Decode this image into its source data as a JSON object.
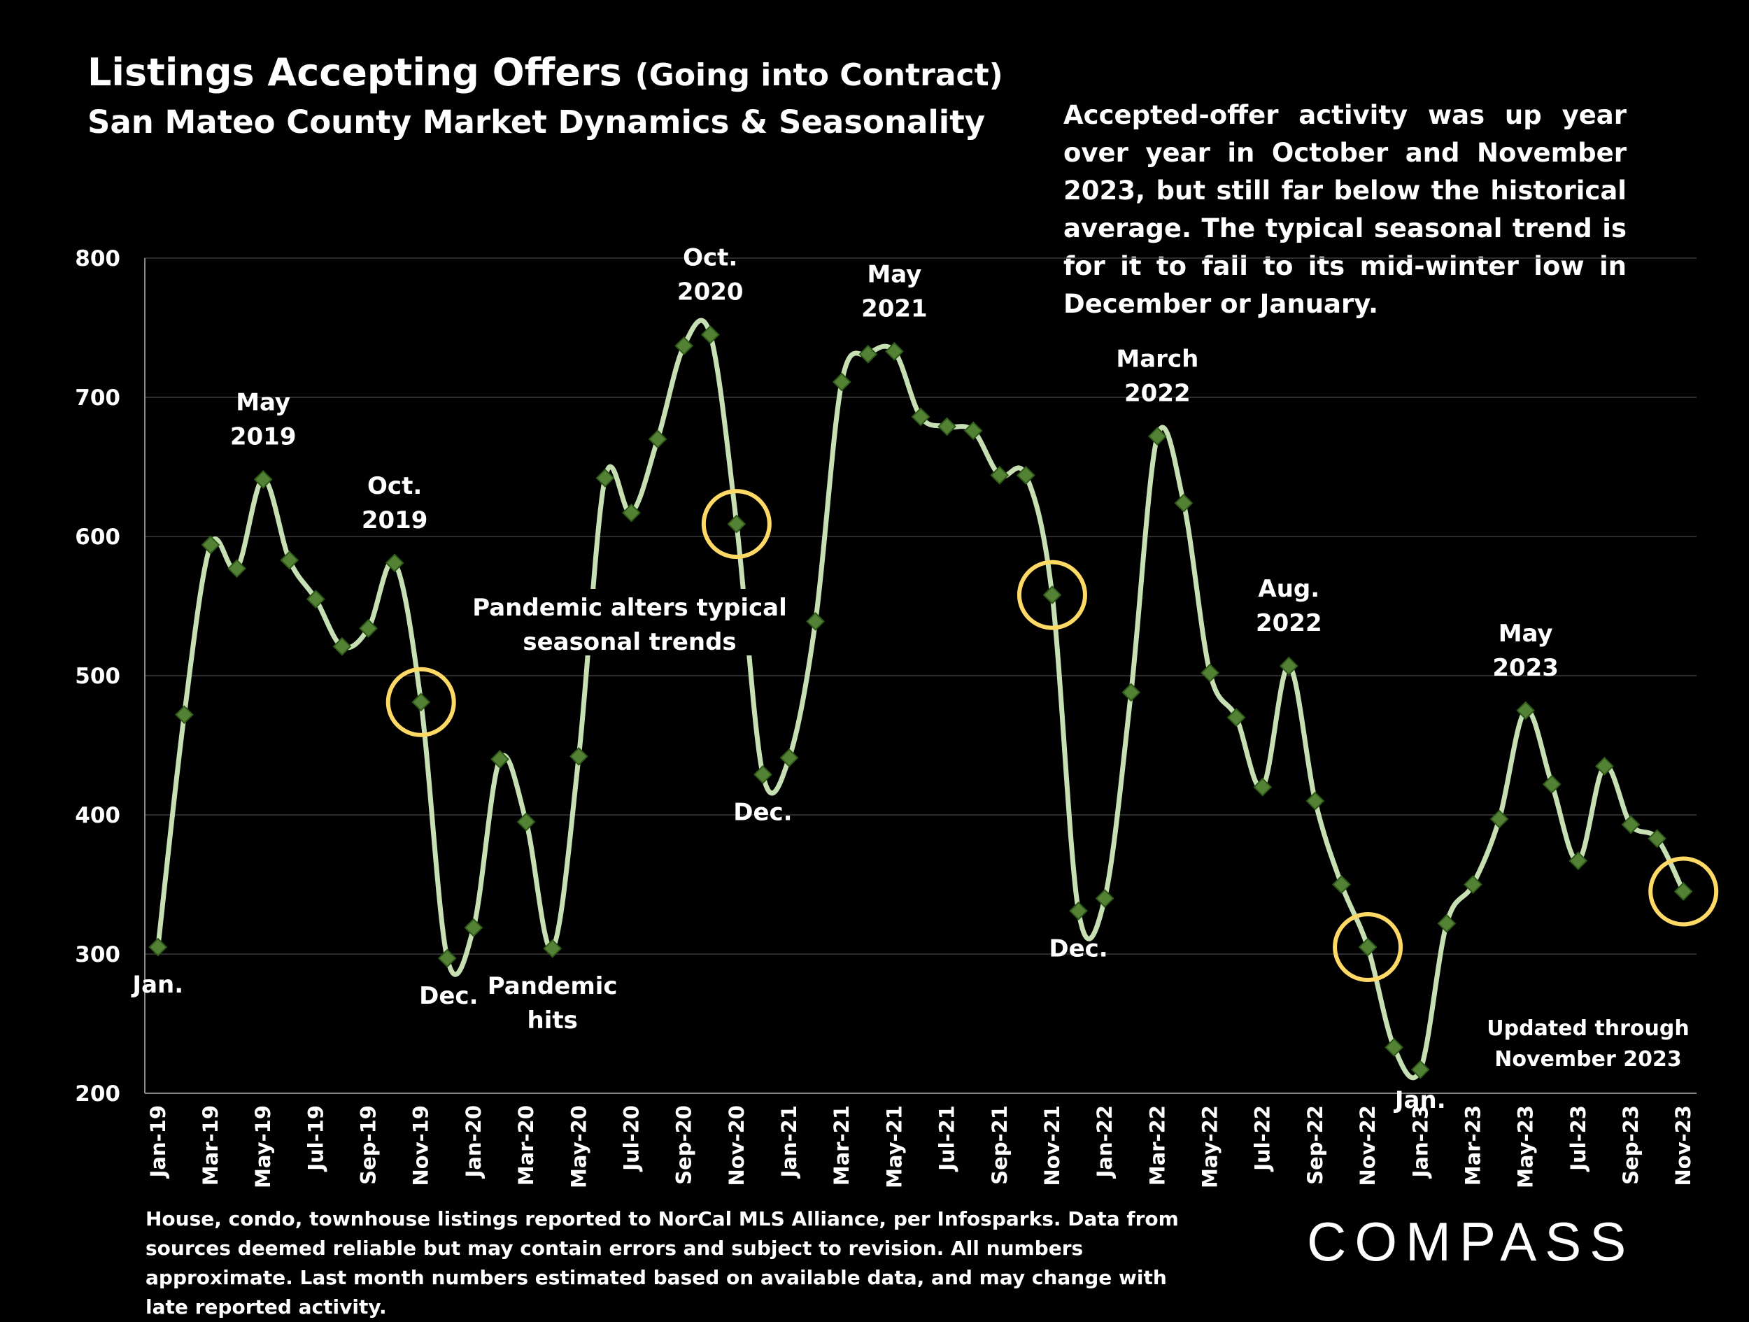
{
  "header": {
    "title_main": "Listings Accepting Offers",
    "title_paren": "(Going into Contract)",
    "subtitle": "San Mateo County Market Dynamics & Seasonality"
  },
  "commentary": "Accepted-offer activity was up year over year in October and November 2023, but still far below the historical average. The typical seasonal trend is for it to fall to its mid-winter low in December or January.",
  "footnote": "House, condo, townhouse listings reported to NorCal MLS Alliance, per Infosparks. Data from sources deemed reliable but may contain errors and subject to revision. All numbers approximate. Last month numbers estimated based on available data, and may change with late reported activity.",
  "logo": "COMPASS",
  "colors": {
    "line": "#c6e0b4",
    "marker": "#548235",
    "marker_edge": "#2f5a1a",
    "circle": "#ffd966",
    "grid": "#3a3a3a"
  },
  "chart_data": {
    "type": "line",
    "x": [
      "Jan-19",
      "Feb-19",
      "Mar-19",
      "Apr-19",
      "May-19",
      "Jun-19",
      "Jul-19",
      "Aug-19",
      "Sep-19",
      "Oct-19",
      "Nov-19",
      "Dec-19",
      "Jan-20",
      "Feb-20",
      "Mar-20",
      "Apr-20",
      "May-20",
      "Jun-20",
      "Jul-20",
      "Aug-20",
      "Sep-20",
      "Oct-20",
      "Nov-20",
      "Dec-20",
      "Jan-21",
      "Feb-21",
      "Mar-21",
      "Apr-21",
      "May-21",
      "Jun-21",
      "Jul-21",
      "Aug-21",
      "Sep-21",
      "Oct-21",
      "Nov-21",
      "Dec-21",
      "Jan-22",
      "Feb-22",
      "Mar-22",
      "Apr-22",
      "May-22",
      "Jun-22",
      "Jul-22",
      "Aug-22",
      "Sep-22",
      "Oct-22",
      "Nov-22",
      "Dec-22",
      "Jan-23",
      "Feb-23",
      "Mar-23",
      "Apr-23",
      "May-23",
      "Jun-23",
      "Jul-23",
      "Aug-23",
      "Sep-23",
      "Oct-23",
      "Nov-23"
    ],
    "tick_labels": [
      "Jan-19",
      "Mar-19",
      "May-19",
      "Jul-19",
      "Sep-19",
      "Nov-19",
      "Jan-20",
      "Mar-20",
      "May-20",
      "Jul-20",
      "Sep-20",
      "Nov-20",
      "Jan-21",
      "Mar-21",
      "May-21",
      "Jul-21",
      "Sep-21",
      "Nov-21",
      "Jan-22",
      "Mar-22",
      "May-22",
      "Jul-22",
      "Sep-22",
      "Nov-22",
      "Jan-23",
      "Mar-23",
      "May-23",
      "Jul-23",
      "Sep-23",
      "Nov-23"
    ],
    "series": [
      {
        "values": [
          305,
          472,
          594,
          577,
          641,
          583,
          555,
          521,
          534,
          581,
          481,
          297,
          319,
          440,
          395,
          304,
          442,
          642,
          617,
          670,
          737,
          745,
          609,
          429,
          441,
          539,
          711,
          731,
          733,
          686,
          679,
          676,
          644,
          644,
          558,
          331,
          340,
          488,
          672,
          624,
          502,
          470,
          420,
          507,
          410,
          350,
          305,
          233,
          217,
          322,
          350,
          397,
          475,
          422,
          367,
          435,
          393,
          383,
          345
        ]
      }
    ],
    "ylim": [
      200,
      800
    ],
    "yticks": [
      200,
      300,
      400,
      500,
      600,
      700,
      800
    ],
    "grid": true,
    "highlighted_points": [
      "Nov-19",
      "Nov-20",
      "Nov-21",
      "Nov-22",
      "Nov-23"
    ],
    "annotations": [
      {
        "text": "Jan.",
        "x": "Jan-19",
        "position": "below"
      },
      {
        "text": "May 2019",
        "x": "May-19",
        "position": "above"
      },
      {
        "text": "Oct. 2019",
        "x": "Oct-19",
        "position": "above"
      },
      {
        "text": "Dec.",
        "x": "Dec-19",
        "position": "below"
      },
      {
        "text": "Pandemic hits",
        "x": "Apr-20",
        "position": "below"
      },
      {
        "text": "Pandemic alters typical seasonal trends",
        "x": "Jul-20",
        "position": "middle"
      },
      {
        "text": "Oct. 2020",
        "x": "Oct-20",
        "position": "above"
      },
      {
        "text": "Dec.",
        "x": "Dec-20",
        "position": "below"
      },
      {
        "text": "May 2021",
        "x": "May-21",
        "position": "above"
      },
      {
        "text": "March 2022",
        "x": "Mar-22",
        "position": "above"
      },
      {
        "text": "Dec.",
        "x": "Dec-21",
        "position": "below"
      },
      {
        "text": "Aug. 2022",
        "x": "Aug-22",
        "position": "above"
      },
      {
        "text": "Jan.",
        "x": "Jan-23",
        "position": "below"
      },
      {
        "text": "May 2023",
        "x": "May-23",
        "position": "above"
      },
      {
        "text": "Updated through November 2023",
        "x": "Nov-23",
        "position": "below"
      }
    ]
  }
}
